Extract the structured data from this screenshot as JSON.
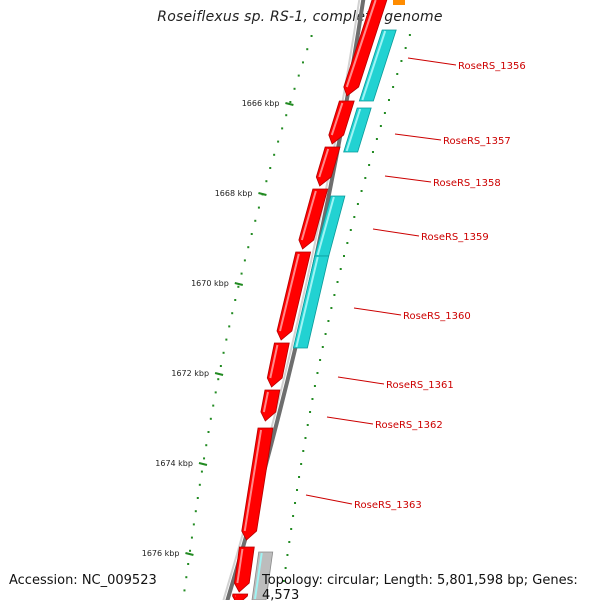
{
  "title": "Roseiflexus sp. RS-1, complete genome",
  "footer": {
    "accession": "Accession: NC_009523",
    "summary": "Topology: circular; Length: 5,801,598 bp; Genes: 4,573"
  },
  "map": {
    "colors": {
      "backbone_dark": "#6e6e6e",
      "backbone_light": "#d2d2d2",
      "forward_gene": "#ff0000",
      "forward_gene_edge": "#b40000",
      "cds_feature": "#22d2d2",
      "cds_feature_edge": "#0a9a9a",
      "other_feature": "#bdbdbd",
      "tick": "#228b22",
      "label": "#cc0000",
      "accent": "#ff8c00"
    },
    "kbp_ticks": [
      {
        "label": "1666 kbp",
        "kbp": 1666
      },
      {
        "label": "1668 kbp",
        "kbp": 1668
      },
      {
        "label": "1670 kbp",
        "kbp": 1670
      },
      {
        "label": "1672 kbp",
        "kbp": 1672
      },
      {
        "label": "1674 kbp",
        "kbp": 1674
      },
      {
        "label": "1676 kbp",
        "kbp": 1676
      }
    ],
    "gene_labels": [
      "RoseRS_1356",
      "RoseRS_1357",
      "RoseRS_1358",
      "RoseRS_1359",
      "RoseRS_1360",
      "RoseRS_1361",
      "RoseRS_1362",
      "RoseRS_1363"
    ]
  }
}
